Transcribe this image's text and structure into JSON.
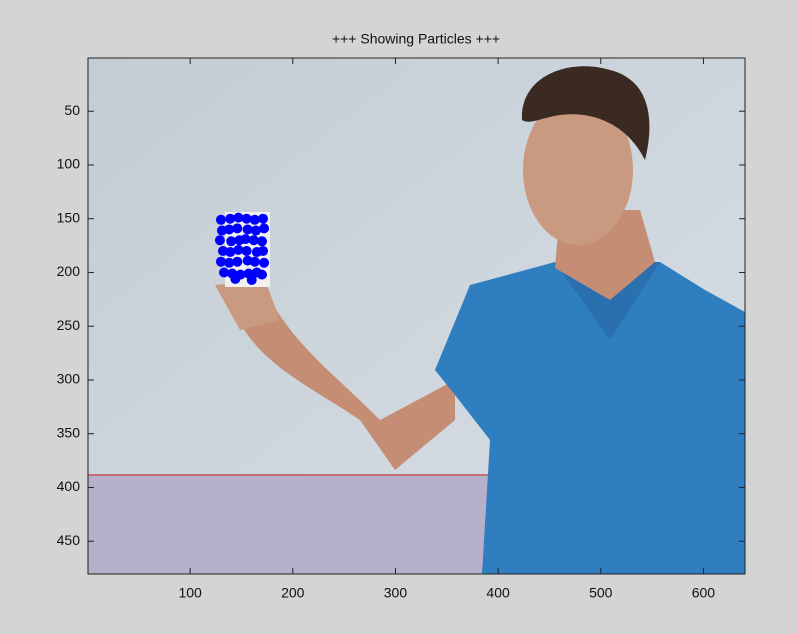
{
  "chart_data": {
    "type": "scatter",
    "title": "+++ Showing Particles +++",
    "xlim": [
      0.5,
      640.5
    ],
    "ylim": [
      0.5,
      480.5
    ],
    "y_reversed": true,
    "xticks": [
      100,
      200,
      300,
      400,
      500,
      600
    ],
    "yticks": [
      50,
      100,
      150,
      200,
      250,
      300,
      350,
      400,
      450
    ],
    "color": "#0000ff",
    "x": [
      130,
      139,
      147,
      155,
      163,
      171,
      131,
      138,
      146,
      156,
      164,
      172,
      129,
      140,
      148,
      154,
      162,
      170,
      132,
      139,
      147,
      155,
      165,
      171,
      130,
      138,
      146,
      156,
      163,
      172,
      133,
      141,
      149,
      157,
      165,
      170,
      144,
      160
    ],
    "values": [
      151,
      150,
      149,
      150,
      151,
      150,
      161,
      160,
      159,
      160,
      161,
      159,
      170,
      171,
      170,
      169,
      170,
      171,
      180,
      181,
      179,
      180,
      181,
      180,
      190,
      191,
      190,
      189,
      190,
      191,
      200,
      201,
      202,
      201,
      200,
      202,
      206,
      207
    ]
  }
}
